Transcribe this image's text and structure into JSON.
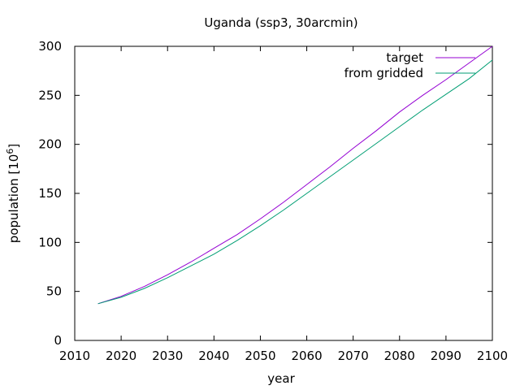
{
  "chart_data": {
    "type": "line",
    "title": "Uganda (ssp3, 30arcmin)",
    "xlabel": "year",
    "ylabel_main": "population [10",
    "ylabel_sup": "6",
    "ylabel_close": "]",
    "xlim": [
      2010,
      2100
    ],
    "ylim": [
      0,
      300
    ],
    "xticks": [
      2010,
      2020,
      2030,
      2040,
      2050,
      2060,
      2070,
      2080,
      2090,
      2100
    ],
    "yticks": [
      0,
      50,
      100,
      150,
      200,
      250,
      300
    ],
    "grid": false,
    "legend_position": "top-right",
    "x": [
      2015,
      2020,
      2025,
      2030,
      2035,
      2040,
      2045,
      2050,
      2055,
      2060,
      2065,
      2070,
      2075,
      2080,
      2085,
      2090,
      2095,
      2100
    ],
    "series": [
      {
        "name": "target",
        "color": "#9400d3",
        "values": [
          37.5,
          45,
          55,
          67,
          80,
          94,
          108,
          124,
          141,
          159,
          177,
          196,
          214,
          233,
          250,
          266,
          283,
          300
        ]
      },
      {
        "name": "from gridded",
        "color": "#009e73",
        "values": [
          37.5,
          44,
          53,
          64,
          76,
          88,
          102,
          117,
          133,
          150,
          167,
          184,
          201,
          218,
          235,
          251,
          267,
          286
        ]
      }
    ]
  }
}
